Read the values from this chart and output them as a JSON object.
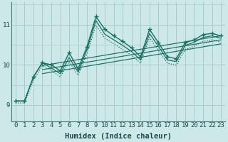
{
  "xlabel": "Humidex (Indice chaleur)",
  "xlim": [
    -0.5,
    23.5
  ],
  "ylim": [
    8.6,
    11.55
  ],
  "yticks": [
    9,
    10,
    11
  ],
  "xticks": [
    0,
    1,
    2,
    3,
    4,
    5,
    6,
    7,
    8,
    9,
    10,
    11,
    12,
    13,
    14,
    15,
    16,
    17,
    18,
    19,
    20,
    21,
    22,
    23
  ],
  "bg_color": "#cce8e8",
  "grid_color": "#aacccc",
  "line_color": "#1a6e60",
  "lines": [
    {
      "x": [
        0,
        1,
        2,
        3,
        4,
        5,
        6,
        7,
        8,
        9,
        10,
        11,
        12,
        13,
        14,
        15,
        16,
        17,
        18,
        19,
        20,
        21,
        22,
        23
      ],
      "y": [
        9.1,
        9.1,
        9.7,
        10.05,
        10.0,
        9.85,
        10.3,
        9.9,
        10.45,
        11.2,
        10.88,
        10.72,
        10.58,
        10.42,
        10.2,
        10.88,
        10.55,
        10.2,
        10.15,
        10.55,
        10.62,
        10.75,
        10.78,
        10.72
      ],
      "style": "-",
      "marker": "+"
    },
    {
      "x": [
        0,
        1,
        2,
        3,
        4,
        5,
        6,
        7,
        8,
        9,
        10,
        11,
        12,
        13,
        14,
        15,
        16,
        17,
        18,
        19,
        20,
        21,
        22,
        23
      ],
      "y": [
        9.1,
        9.1,
        9.7,
        10.05,
        9.92,
        9.78,
        10.18,
        9.82,
        10.38,
        11.1,
        10.76,
        10.62,
        10.48,
        10.33,
        10.12,
        10.78,
        10.46,
        10.12,
        10.08,
        10.48,
        10.56,
        10.68,
        10.72,
        10.66
      ],
      "style": "-",
      "marker": null
    },
    {
      "x": [
        0,
        1,
        2,
        3,
        4,
        5,
        6,
        7,
        8,
        9,
        10,
        11,
        12,
        13,
        14,
        15,
        16,
        17,
        18,
        19,
        20,
        21,
        22,
        23
      ],
      "y": [
        9.05,
        9.05,
        9.62,
        9.98,
        9.86,
        9.7,
        10.08,
        9.74,
        10.28,
        10.98,
        10.66,
        10.52,
        10.38,
        10.24,
        10.04,
        10.68,
        10.36,
        10.04,
        9.99,
        10.38,
        10.46,
        10.58,
        10.62,
        10.56
      ],
      "style": ":",
      "marker": null
    },
    {
      "x": [
        3,
        23
      ],
      "y": [
        9.98,
        10.72
      ],
      "style": "-",
      "marker": null
    },
    {
      "x": [
        3,
        23
      ],
      "y": [
        9.88,
        10.62
      ],
      "style": "-",
      "marker": null
    },
    {
      "x": [
        3,
        23
      ],
      "y": [
        9.78,
        10.52
      ],
      "style": "-",
      "marker": null
    }
  ],
  "font_family": "monospace",
  "tick_fontsize": 6.5,
  "label_fontsize": 7.5
}
